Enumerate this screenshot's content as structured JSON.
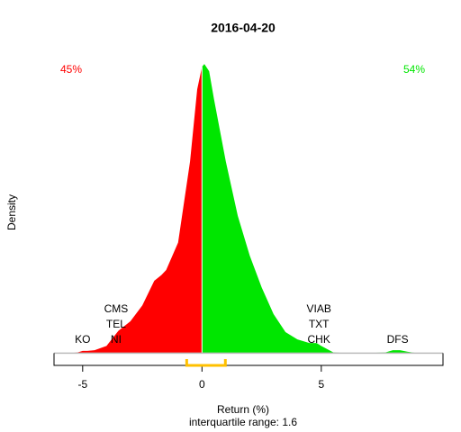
{
  "chart_data": {
    "type": "density",
    "title": "2016-04-20",
    "left_share": "45%",
    "right_share": "54%",
    "ylabel": "Density",
    "xlabel": "Return (%)",
    "subtitle": "interquartile range: 1.6",
    "x": [
      -6.2,
      -5.5,
      -5.2,
      -5,
      -4.8,
      -4.5,
      -4,
      -3.5,
      -3,
      -2.5,
      -2,
      -1.7,
      -1.5,
      -1,
      -0.5,
      -0.2,
      0,
      0.1,
      0.3,
      0.5,
      1,
      1.5,
      2,
      2.5,
      3,
      3.5,
      4,
      4.5,
      4.8,
      5,
      5.5,
      6,
      7,
      7.7,
      8,
      8.3,
      8.6,
      9,
      10.1
    ],
    "values": [
      0,
      0,
      0.001,
      0.003,
      0.003,
      0.004,
      0.01,
      0.031,
      0.044,
      0.066,
      0.1,
      0.108,
      0.115,
      0.153,
      0.265,
      0.365,
      0.396,
      0.4,
      0.39,
      0.352,
      0.265,
      0.19,
      0.135,
      0.091,
      0.054,
      0.029,
      0.019,
      0.014,
      0.014,
      0.01,
      0.001,
      0,
      0,
      0.001,
      0.004,
      0.004,
      0.002,
      0,
      0
    ],
    "split": 0,
    "colors": [
      "#ff0000",
      "#00e600"
    ],
    "baseline_color": "#bbbbbb",
    "iqr": [
      -0.64,
      0.98
    ],
    "iqr_color": "#ffc000",
    "annotations": [
      {
        "x": -5,
        "labels": [
          "KO"
        ]
      },
      {
        "x": -3.6,
        "labels": [
          "CMS",
          "TEL",
          "NI"
        ]
      },
      {
        "x": 4.9,
        "labels": [
          "VIAB",
          "TXT",
          "CHK"
        ]
      },
      {
        "x": 8.2,
        "labels": [
          "DFS"
        ]
      }
    ],
    "xlim": [
      -6.2,
      10.1
    ],
    "ylim": [
      -0.017,
      0.43
    ],
    "xticks": [
      -5,
      0,
      5
    ]
  }
}
